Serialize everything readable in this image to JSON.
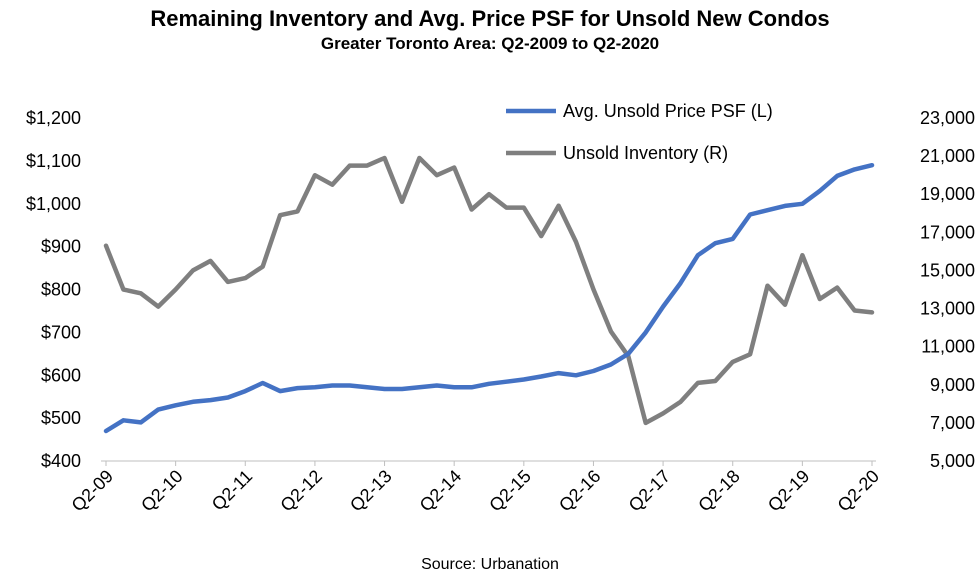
{
  "title": "Remaining Inventory and Avg. Price PSF for Unsold New Condos",
  "subtitle": "Greater Toronto Area: Q2-2009 to Q2-2020",
  "source": "Source: Urbanation",
  "chart_data": {
    "type": "line",
    "x": [
      "Q2-09",
      "Q3-09",
      "Q4-09",
      "Q1-10",
      "Q2-10",
      "Q3-10",
      "Q4-10",
      "Q1-11",
      "Q2-11",
      "Q3-11",
      "Q4-11",
      "Q1-12",
      "Q2-12",
      "Q3-12",
      "Q4-12",
      "Q1-13",
      "Q2-13",
      "Q3-13",
      "Q4-13",
      "Q1-14",
      "Q2-14",
      "Q3-14",
      "Q4-14",
      "Q1-15",
      "Q2-15",
      "Q3-15",
      "Q4-15",
      "Q1-16",
      "Q2-16",
      "Q3-16",
      "Q4-16",
      "Q1-17",
      "Q2-17",
      "Q3-17",
      "Q4-17",
      "Q1-18",
      "Q2-18",
      "Q3-18",
      "Q4-18",
      "Q1-19",
      "Q2-19",
      "Q3-19",
      "Q4-19",
      "Q1-20",
      "Q2-20"
    ],
    "x_tick_labels": [
      "Q2-09",
      "Q2-10",
      "Q2-11",
      "Q2-12",
      "Q2-13",
      "Q2-14",
      "Q2-15",
      "Q2-16",
      "Q2-17",
      "Q2-18",
      "Q2-19",
      "Q2-20"
    ],
    "y_left": {
      "min": 400,
      "max": 1200,
      "step": 100,
      "tick_labels": [
        "$400",
        "$500",
        "$600",
        "$700",
        "$800",
        "$900",
        "$1,000",
        "$1,100",
        "$1,200"
      ]
    },
    "y_right": {
      "min": 5000,
      "max": 23000,
      "step": 2000,
      "tick_labels": [
        "5,000",
        "7,000",
        "9,000",
        "11,000",
        "13,000",
        "15,000",
        "17,000",
        "19,000",
        "21,000",
        "23,000"
      ]
    },
    "series": [
      {
        "name": "Avg. Unsold Price PSF (L)",
        "axis": "left",
        "color": "#4472C4",
        "values": [
          470,
          495,
          490,
          520,
          530,
          538,
          542,
          548,
          563,
          582,
          563,
          570,
          572,
          576,
          576,
          572,
          568,
          568,
          572,
          576,
          572,
          572,
          580,
          585,
          590,
          597,
          605,
          600,
          610,
          625,
          650,
          700,
          760,
          815,
          880,
          908,
          918,
          975,
          985,
          995,
          1000,
          1030,
          1065,
          1080,
          1090
        ]
      },
      {
        "name": "Unsold Inventory (R)",
        "axis": "right",
        "color": "#7F7F7F",
        "values": [
          16300,
          14000,
          13800,
          13100,
          14000,
          15000,
          15500,
          14400,
          14600,
          15200,
          17900,
          18100,
          20000,
          19500,
          20500,
          20500,
          20900,
          18600,
          20900,
          20000,
          20400,
          18200,
          19000,
          18300,
          18300,
          16800,
          18400,
          16500,
          14000,
          11800,
          10500,
          7000,
          7500,
          8100,
          9100,
          9200,
          10200,
          10600,
          14200,
          13200,
          15800,
          13500,
          14100,
          12900,
          12800
        ]
      }
    ],
    "legend_position": "top-right",
    "grid": false
  }
}
